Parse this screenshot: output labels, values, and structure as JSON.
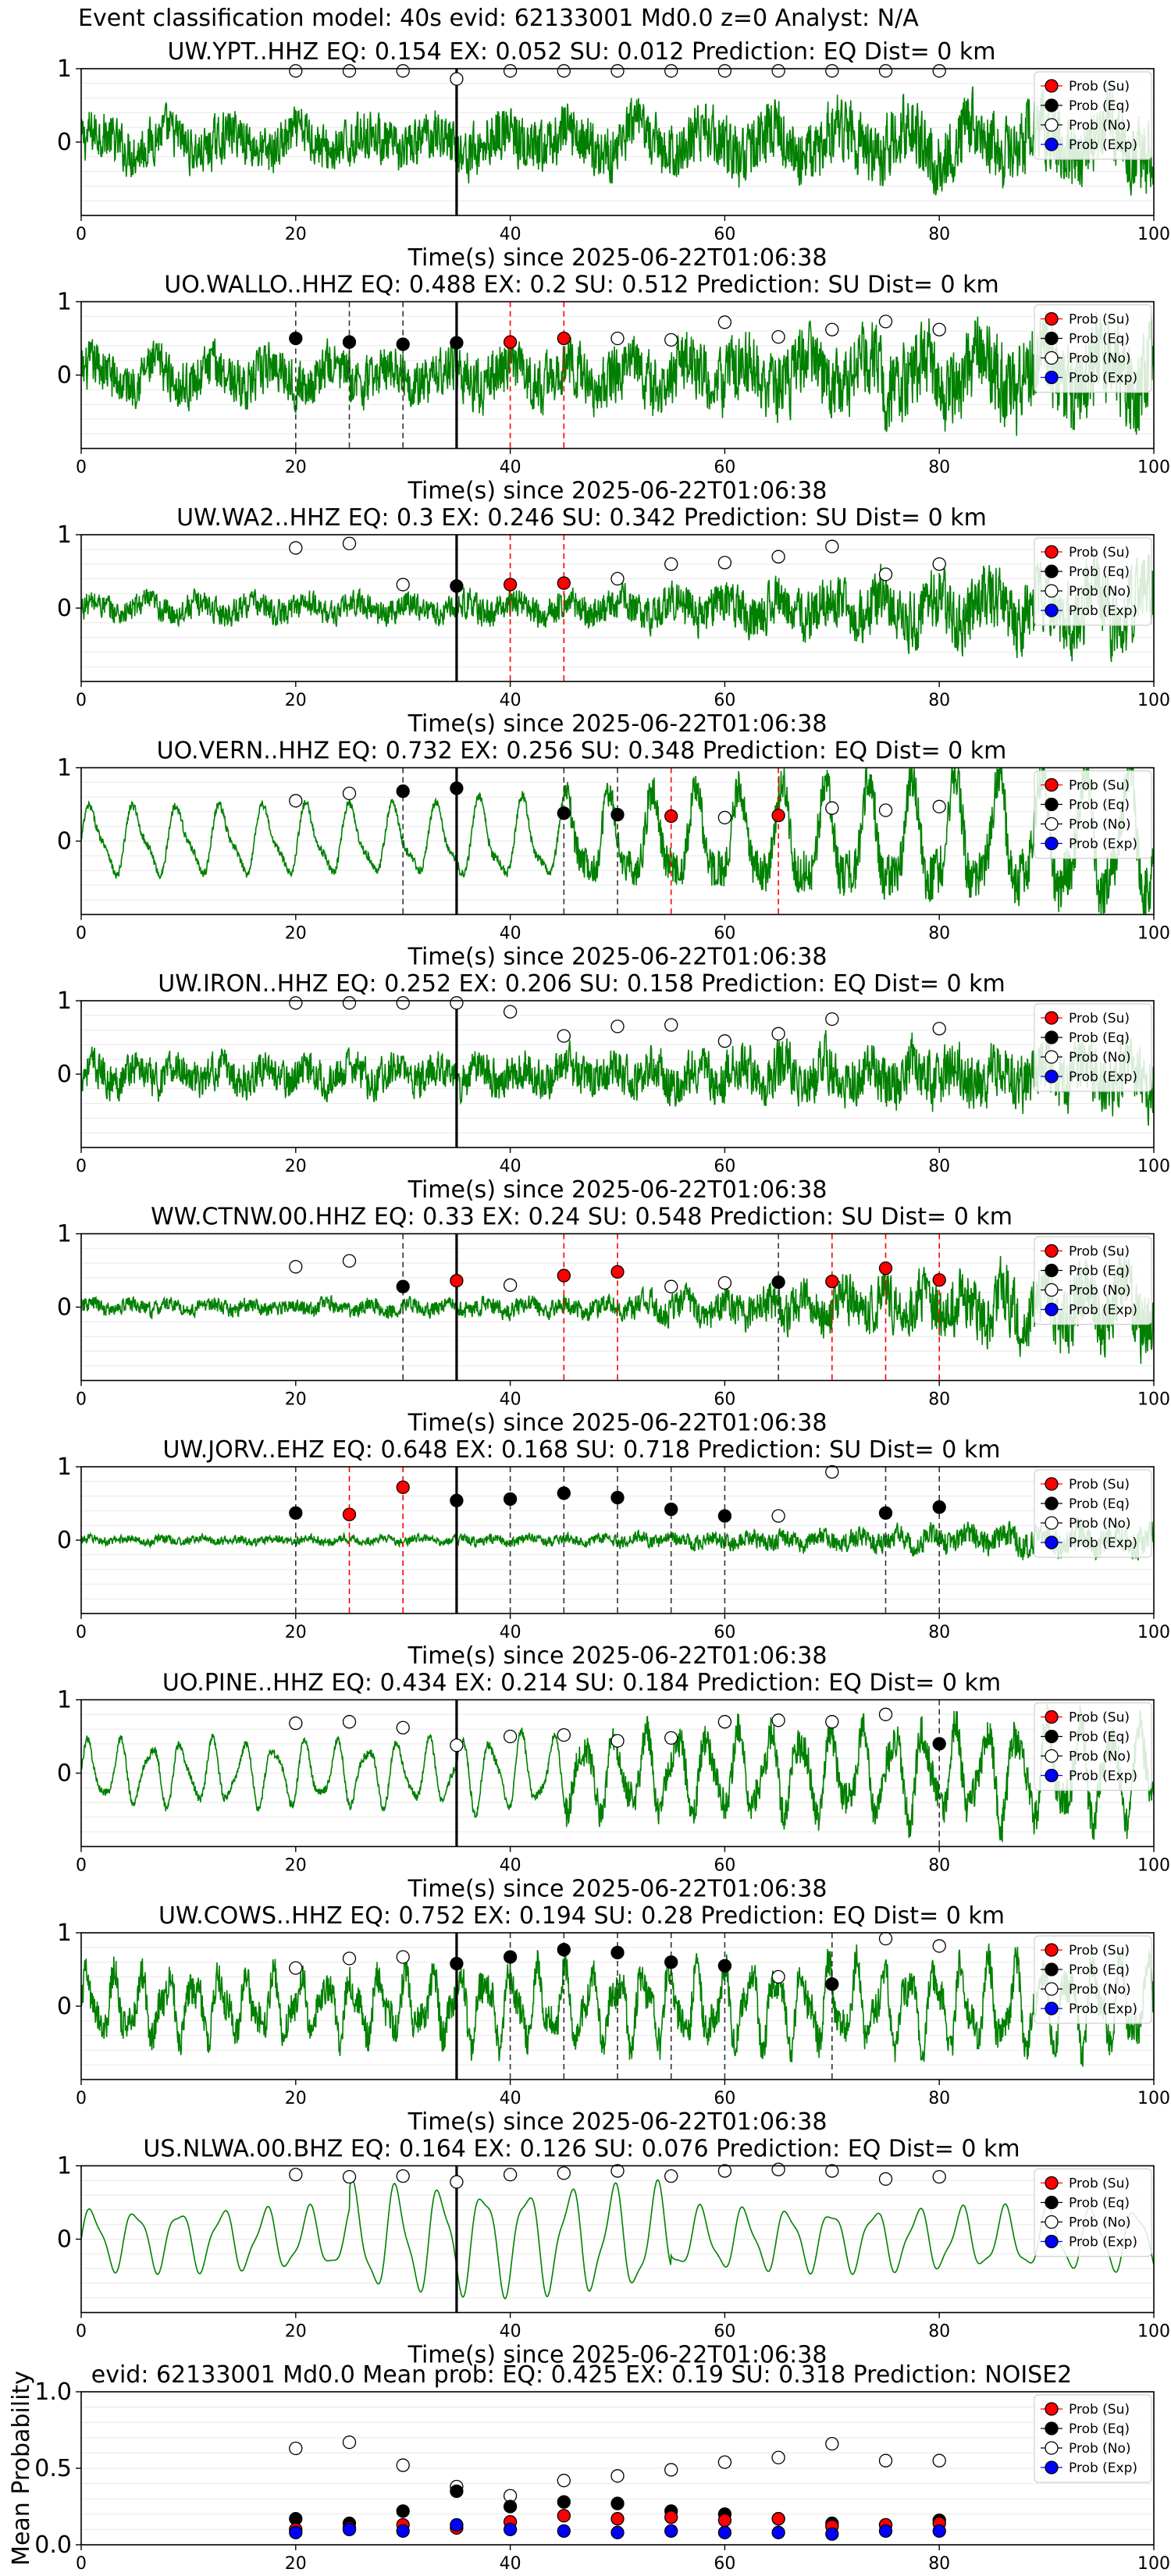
{
  "suptitle": "Event classification model: 40s evid: 62133001 Md0.0 z=0 Analyst: N/A",
  "colors": {
    "waveform": "#008000",
    "su": "#ff0000",
    "eq": "#000000",
    "no": "#ffffff",
    "exp": "#0000ff",
    "arrival": "#000000"
  },
  "legend_labels": [
    "Prob (Su)",
    "Prob (Eq)",
    "Prob (No)",
    "Prob (Exp)"
  ],
  "chart_data": [
    {
      "type": "line",
      "title": "UW.YPT..HHZ   EQ: 0.154  EX: 0.052  SU: 0.012   Prediction: EQ    Dist= 0 km",
      "xlabel": "Time(s) since 2025-06-22T01:06:38",
      "xlim": [
        0,
        100
      ],
      "ylim": [
        -1,
        1
      ],
      "xticks": [
        0,
        20,
        40,
        60,
        80,
        100
      ],
      "yticks": [
        0,
        1
      ],
      "legend": "top-right",
      "arrival_time": 35,
      "waveform_style": "noise",
      "amplitude": 0.55,
      "growth": 0.5,
      "probs_time": [
        20,
        25,
        30,
        35,
        40,
        45,
        50,
        55,
        60,
        65,
        70,
        75,
        80
      ],
      "prob_no": [
        0.97,
        0.97,
        0.97,
        0.86,
        0.97,
        0.97,
        0.97,
        0.97,
        0.97,
        0.97,
        0.97,
        0.97,
        0.97
      ],
      "dashed": []
    },
    {
      "type": "line",
      "title": "UO.WALLO..HHZ   EQ: 0.488  EX: 0.2  SU: 0.512   Prediction: SU    Dist= 0 km",
      "xlabel": "Time(s) since 2025-06-22T01:06:38",
      "xlim": [
        0,
        100
      ],
      "ylim": [
        -1,
        1
      ],
      "xticks": [
        0,
        20,
        40,
        60,
        80,
        100
      ],
      "yticks": [
        0,
        1
      ],
      "legend": "top-right",
      "arrival_time": 35,
      "waveform_style": "noise",
      "amplitude": 0.55,
      "growth": 0.9,
      "probs_time": [
        20,
        25,
        30,
        35,
        40,
        45,
        50,
        55,
        60,
        65,
        70,
        75,
        80
      ],
      "prob_no": [
        null,
        null,
        null,
        null,
        null,
        null,
        0.5,
        0.48,
        0.72,
        0.52,
        0.62,
        0.73,
        0.62
      ],
      "prob_eq": [
        0.5,
        0.45,
        0.42,
        0.44,
        null,
        null,
        null,
        null,
        null,
        null,
        null,
        null,
        null
      ],
      "prob_su": [
        null,
        null,
        null,
        null,
        0.45,
        0.5,
        null,
        null,
        null,
        null,
        null,
        null,
        null
      ],
      "dashed": [
        {
          "t": 20,
          "c": "k"
        },
        {
          "t": 25,
          "c": "k"
        },
        {
          "t": 30,
          "c": "k"
        },
        {
          "t": 40,
          "c": "r"
        },
        {
          "t": 45,
          "c": "r"
        }
      ]
    },
    {
      "type": "line",
      "title": "UW.WA2..HHZ   EQ: 0.3  EX: 0.246  SU: 0.342   Prediction: SU    Dist= 0 km",
      "xlabel": "Time(s) since 2025-06-22T01:06:38",
      "xlim": [
        0,
        100
      ],
      "ylim": [
        -1,
        1
      ],
      "xticks": [
        0,
        20,
        40,
        60,
        80,
        100
      ],
      "yticks": [
        0,
        1
      ],
      "legend": "top-right",
      "arrival_time": 35,
      "waveform_style": "noise",
      "amplitude": 0.3,
      "growth": 2.0,
      "probs_time": [
        20,
        25,
        30,
        35,
        40,
        45,
        50,
        55,
        60,
        65,
        70,
        75,
        80
      ],
      "prob_no": [
        0.82,
        0.88,
        0.32,
        null,
        null,
        null,
        0.4,
        0.6,
        0.62,
        0.7,
        0.84,
        0.46,
        0.6
      ],
      "prob_eq": [
        null,
        null,
        null,
        0.3,
        null,
        null,
        null,
        null,
        null,
        null,
        null,
        null,
        null
      ],
      "prob_su": [
        null,
        null,
        null,
        null,
        0.32,
        0.34,
        null,
        null,
        null,
        null,
        null,
        null,
        null
      ],
      "dashed": [
        {
          "t": 40,
          "c": "r"
        },
        {
          "t": 45,
          "c": "r"
        }
      ]
    },
    {
      "type": "line",
      "title": "UO.VERN..HHZ   EQ: 0.732  EX: 0.256  SU: 0.348   Prediction: EQ    Dist= 0 km",
      "xlabel": "Time(s) since 2025-06-22T01:06:38",
      "xlim": [
        0,
        100
      ],
      "ylim": [
        -1,
        1
      ],
      "xticks": [
        0,
        20,
        40,
        60,
        80,
        100
      ],
      "yticks": [
        0,
        1
      ],
      "legend": "top-right",
      "arrival_time": 35,
      "waveform_style": "wave",
      "amplitude": 0.55,
      "growth": 0.8,
      "probs_time": [
        20,
        25,
        30,
        35,
        40,
        45,
        50,
        55,
        60,
        65,
        70,
        75,
        80
      ],
      "prob_no": [
        0.55,
        0.65,
        null,
        null,
        null,
        null,
        null,
        null,
        0.32,
        null,
        0.45,
        0.42,
        0.47
      ],
      "prob_eq": [
        null,
        null,
        0.68,
        0.72,
        null,
        0.38,
        0.36,
        null,
        null,
        null,
        null,
        null,
        null
      ],
      "prob_su": [
        null,
        null,
        null,
        null,
        null,
        null,
        null,
        0.34,
        null,
        0.35,
        null,
        null,
        null
      ],
      "dashed": [
        {
          "t": 30,
          "c": "k"
        },
        {
          "t": 45,
          "c": "k"
        },
        {
          "t": 50,
          "c": "k"
        },
        {
          "t": 55,
          "c": "r"
        },
        {
          "t": 65,
          "c": "r"
        }
      ]
    },
    {
      "type": "line",
      "title": "UW.IRON..HHZ   EQ: 0.252  EX: 0.206  SU: 0.158   Prediction: EQ    Dist= 0 km",
      "xlabel": "Time(s) since 2025-06-22T01:06:38",
      "xlim": [
        0,
        100
      ],
      "ylim": [
        -1,
        1
      ],
      "xticks": [
        0,
        20,
        40,
        60,
        80,
        100
      ],
      "yticks": [
        0,
        1
      ],
      "legend": "top-right",
      "arrival_time": 35,
      "waveform_style": "noise",
      "amplitude": 0.42,
      "growth": 0.6,
      "probs_time": [
        20,
        25,
        30,
        35,
        40,
        45,
        50,
        55,
        60,
        65,
        70,
        75,
        80
      ],
      "prob_no": [
        0.97,
        0.97,
        0.97,
        0.97,
        0.85,
        0.52,
        0.65,
        0.67,
        0.45,
        0.55,
        0.75,
        null,
        0.62
      ],
      "dashed": []
    },
    {
      "type": "line",
      "title": "WW.CTNW.00.HHZ   EQ: 0.33  EX: 0.24  SU: 0.548   Prediction: SU    Dist= 0 km",
      "xlabel": "Time(s) since 2025-06-22T01:06:38",
      "xlim": [
        0,
        100
      ],
      "ylim": [
        -1,
        1
      ],
      "xticks": [
        0,
        20,
        40,
        60,
        80,
        100
      ],
      "yticks": [
        0,
        1
      ],
      "legend": "top-right",
      "arrival_time": 35,
      "waveform_style": "noise",
      "amplitude": 0.18,
      "growth": 4.0,
      "probs_time": [
        20,
        25,
        30,
        35,
        40,
        45,
        50,
        55,
        60,
        65,
        70,
        75,
        80
      ],
      "prob_no": [
        0.55,
        0.63,
        null,
        null,
        0.3,
        null,
        null,
        0.28,
        0.33,
        null,
        null,
        null,
        null
      ],
      "prob_eq": [
        null,
        null,
        0.28,
        null,
        null,
        null,
        null,
        null,
        null,
        0.34,
        null,
        null,
        null
      ],
      "prob_su": [
        null,
        null,
        null,
        0.36,
        null,
        0.43,
        0.48,
        null,
        null,
        null,
        0.35,
        0.53,
        0.37
      ],
      "dashed": [
        {
          "t": 30,
          "c": "k"
        },
        {
          "t": 45,
          "c": "r"
        },
        {
          "t": 50,
          "c": "r"
        },
        {
          "t": 65,
          "c": "k"
        },
        {
          "t": 70,
          "c": "r"
        },
        {
          "t": 75,
          "c": "r"
        },
        {
          "t": 80,
          "c": "r"
        }
      ]
    },
    {
      "type": "line",
      "title": "UW.JORV..EHZ   EQ: 0.648  EX: 0.168  SU: 0.718   Prediction: SU    Dist= 0 km",
      "xlabel": "Time(s) since 2025-06-22T01:06:38",
      "xlim": [
        0,
        100
      ],
      "ylim": [
        -1,
        1
      ],
      "xticks": [
        0,
        20,
        40,
        60,
        80,
        100
      ],
      "yticks": [
        0,
        1
      ],
      "legend": "top-right",
      "arrival_time": 35,
      "waveform_style": "noise",
      "amplitude": 0.1,
      "growth": 2.5,
      "probs_time": [
        20,
        25,
        30,
        35,
        40,
        45,
        50,
        55,
        60,
        65,
        70,
        75,
        80
      ],
      "prob_no": [
        null,
        null,
        null,
        null,
        null,
        null,
        null,
        null,
        null,
        0.33,
        0.93,
        null,
        null
      ],
      "prob_eq": [
        0.37,
        null,
        null,
        0.54,
        0.56,
        0.64,
        0.58,
        0.42,
        0.33,
        null,
        null,
        0.37,
        0.45
      ],
      "prob_su": [
        null,
        0.35,
        0.72,
        null,
        null,
        null,
        null,
        null,
        null,
        null,
        null,
        null,
        null
      ],
      "dashed": [
        {
          "t": 20,
          "c": "k"
        },
        {
          "t": 25,
          "c": "r"
        },
        {
          "t": 30,
          "c": "r"
        },
        {
          "t": 40,
          "c": "k"
        },
        {
          "t": 45,
          "c": "k"
        },
        {
          "t": 50,
          "c": "k"
        },
        {
          "t": 55,
          "c": "k"
        },
        {
          "t": 60,
          "c": "k"
        },
        {
          "t": 75,
          "c": "k"
        },
        {
          "t": 80,
          "c": "k"
        }
      ]
    },
    {
      "type": "line",
      "title": "UO.PINE..HHZ   EQ: 0.434  EX: 0.214  SU: 0.184   Prediction: EQ    Dist= 0 km",
      "xlabel": "Time(s) since 2025-06-22T01:06:38",
      "xlim": [
        0,
        100
      ],
      "ylim": [
        -1,
        1
      ],
      "xticks": [
        0,
        20,
        40,
        60,
        80,
        100
      ],
      "yticks": [
        0,
        1
      ],
      "legend": "top-right",
      "arrival_time": 35,
      "waveform_style": "wave",
      "amplitude": 0.5,
      "growth": 0.4,
      "probs_time": [
        20,
        25,
        30,
        35,
        40,
        45,
        50,
        55,
        60,
        65,
        70,
        75,
        80
      ],
      "prob_no": [
        0.68,
        0.7,
        0.62,
        0.38,
        0.5,
        0.52,
        0.44,
        0.48,
        0.7,
        0.72,
        0.7,
        0.8,
        null
      ],
      "prob_eq": [
        null,
        null,
        null,
        null,
        null,
        null,
        null,
        null,
        null,
        null,
        null,
        null,
        0.4
      ],
      "dashed": [
        {
          "t": 80,
          "c": "k"
        }
      ]
    },
    {
      "type": "line",
      "title": "UW.COWS..HHZ   EQ: 0.752  EX: 0.194  SU: 0.28   Prediction: EQ    Dist= 0 km",
      "xlabel": "Time(s) since 2025-06-22T01:06:38",
      "xlim": [
        0,
        100
      ],
      "ylim": [
        -1,
        1
      ],
      "xticks": [
        0,
        20,
        40,
        60,
        80,
        100
      ],
      "yticks": [
        0,
        1
      ],
      "legend": "top-right",
      "arrival_time": 35,
      "waveform_style": "mixed",
      "amplitude": 0.55,
      "growth": 0.3,
      "probs_time": [
        20,
        25,
        30,
        35,
        40,
        45,
        50,
        55,
        60,
        65,
        70,
        75,
        80
      ],
      "prob_no": [
        0.52,
        0.65,
        0.67,
        null,
        null,
        null,
        null,
        null,
        null,
        0.4,
        null,
        0.92,
        0.82
      ],
      "prob_eq": [
        null,
        null,
        null,
        0.58,
        0.67,
        0.77,
        0.73,
        0.6,
        0.55,
        null,
        0.3,
        null,
        null
      ],
      "dashed": [
        {
          "t": 40,
          "c": "k"
        },
        {
          "t": 45,
          "c": "k"
        },
        {
          "t": 50,
          "c": "k"
        },
        {
          "t": 55,
          "c": "k"
        },
        {
          "t": 60,
          "c": "k"
        },
        {
          "t": 70,
          "c": "k"
        }
      ]
    },
    {
      "type": "line",
      "title": "US.NLWA.00.BHZ   EQ: 0.164  EX: 0.126  SU: 0.076   Prediction: EQ    Dist= 0 km",
      "xlabel": "Time(s) since 2025-06-22T01:06:38",
      "xlim": [
        0,
        100
      ],
      "ylim": [
        -1,
        1
      ],
      "xticks": [
        0,
        20,
        40,
        60,
        80,
        100
      ],
      "yticks": [
        0,
        1
      ],
      "legend": "top-right",
      "arrival_time": 35,
      "waveform_style": "smooth",
      "amplitude": 0.6,
      "growth": 0.0,
      "probs_time": [
        20,
        25,
        30,
        35,
        40,
        45,
        50,
        55,
        60,
        65,
        70,
        75,
        80
      ],
      "prob_no": [
        0.88,
        0.85,
        0.86,
        0.78,
        0.88,
        0.9,
        0.93,
        0.86,
        0.93,
        0.95,
        0.93,
        0.82,
        0.85
      ],
      "dashed": []
    },
    {
      "type": "scatter",
      "title": "evid: 62133001  Md0.0   Mean prob:   EQ: 0.425  EX: 0.19  SU: 0.318   Prediction: NOISE2",
      "ylabel": "Mean Probability",
      "xlim": [
        0,
        100
      ],
      "ylim": [
        0,
        1
      ],
      "xticks": [
        0,
        20,
        40,
        60,
        80,
        100
      ],
      "yticks": [
        0.0,
        0.5,
        1.0
      ],
      "ytick_labels": [
        "0.0",
        "0.5",
        "1.0"
      ],
      "legend": "top-right",
      "probs_time": [
        20,
        25,
        30,
        35,
        40,
        45,
        50,
        55,
        60,
        65,
        70,
        75,
        80
      ],
      "prob_no": [
        0.63,
        0.67,
        0.52,
        0.38,
        0.32,
        0.42,
        0.45,
        0.49,
        0.54,
        0.57,
        0.66,
        0.55,
        0.55
      ],
      "prob_eq": [
        0.17,
        0.14,
        0.22,
        0.35,
        0.25,
        0.28,
        0.27,
        0.22,
        0.2,
        0.17,
        0.14,
        0.13,
        0.16
      ],
      "prob_su": [
        0.1,
        0.11,
        0.13,
        0.11,
        0.15,
        0.19,
        0.17,
        0.18,
        0.16,
        0.17,
        0.12,
        0.13,
        0.14
      ],
      "prob_exp": [
        0.08,
        0.1,
        0.09,
        0.13,
        0.1,
        0.09,
        0.08,
        0.09,
        0.08,
        0.08,
        0.07,
        0.09,
        0.09
      ]
    }
  ]
}
